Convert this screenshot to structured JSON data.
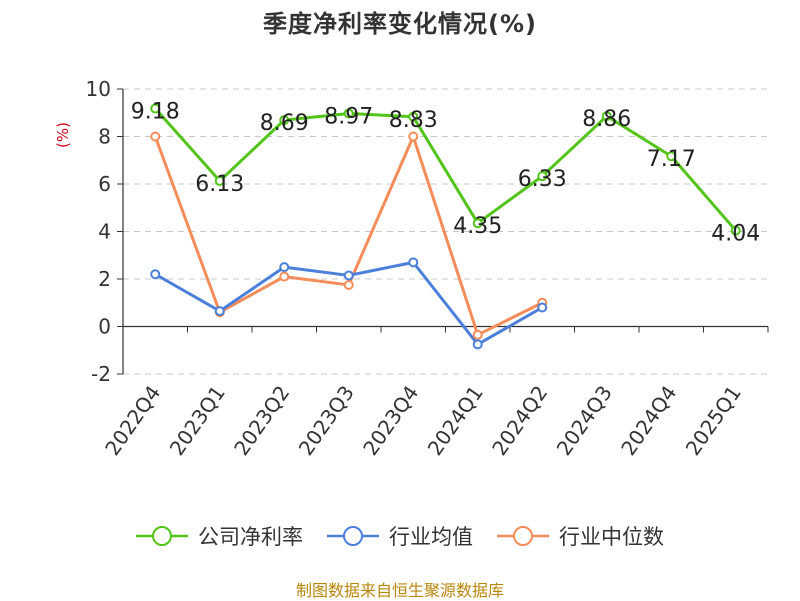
{
  "title": "季度净利率变化情况(%)",
  "unit_label": "(%)",
  "source": "制图数据来自恒生聚源数据库",
  "colors": {
    "company": "#52c41a",
    "industry_avg": "#4a7fdb",
    "industry_median": "#f58d5a",
    "unit_label": "#d0021b",
    "source": "#b8860b"
  },
  "chart_data": {
    "type": "line",
    "title": "季度净利率变化情况(%)",
    "ylabel": "(%)",
    "xlabel": "",
    "ylim": [
      -2,
      10
    ],
    "yticks": [
      -2,
      0,
      2,
      4,
      6,
      8,
      10
    ],
    "grid": true,
    "legend_position": "bottom",
    "categories": [
      "2022Q4",
      "2023Q1",
      "2023Q2",
      "2023Q3",
      "2023Q4",
      "2024Q1",
      "2024Q2",
      "2024Q3",
      "2024Q4",
      "2025Q1"
    ],
    "series": [
      {
        "name": "公司净利率",
        "color": "#52c41a",
        "values": [
          9.18,
          6.13,
          8.69,
          8.97,
          8.83,
          4.35,
          6.33,
          8.86,
          7.17,
          4.04
        ],
        "labels": [
          "9.18",
          "6.13",
          "8.69",
          "8.97",
          "8.83",
          "4.35",
          "6.33",
          "8.86",
          "7.17",
          "4.04"
        ]
      },
      {
        "name": "行业均值",
        "color": "#4a7fdb",
        "values": [
          2.2,
          0.65,
          2.5,
          2.15,
          2.7,
          -0.75,
          0.8,
          null,
          null,
          null
        ]
      },
      {
        "name": "行业中位数",
        "color": "#f58d5a",
        "values": [
          8.0,
          0.6,
          2.1,
          1.75,
          8.0,
          -0.35,
          1.0,
          null,
          null,
          null
        ]
      }
    ]
  }
}
